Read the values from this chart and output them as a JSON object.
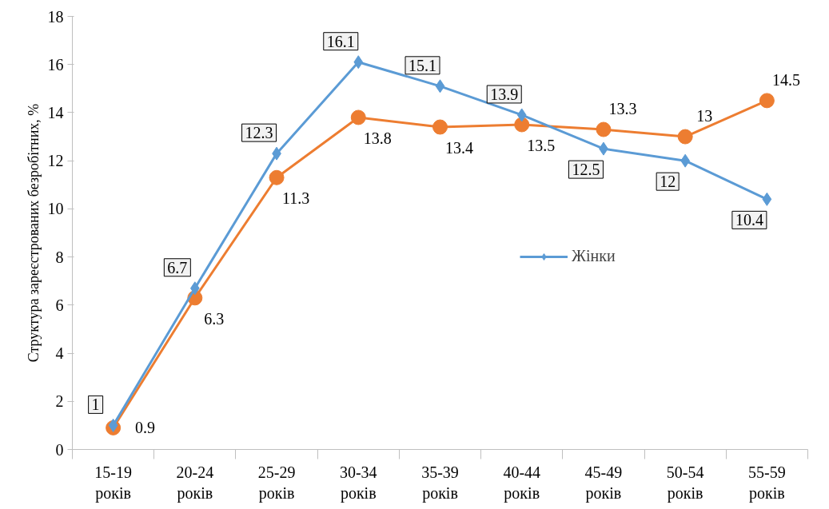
{
  "chart_data": {
    "type": "line",
    "ylabel": "Структура зареєстрованих безробітних, %",
    "categories": [
      "15-19 років",
      "20-24 років",
      "25-29 років",
      "30-34 років",
      "35-39 років",
      "40-44 років",
      "45-49 років",
      "50-54 років",
      "55-59 років"
    ],
    "series": [
      {
        "name": "Жінки",
        "color": "#5b9bd5",
        "marker": "diamond",
        "values": [
          1,
          6.7,
          12.3,
          16.1,
          15.1,
          13.9,
          12.5,
          12,
          10.4
        ]
      },
      {
        "color": "#ed7d31",
        "marker": "circle",
        "values": [
          0.9,
          6.3,
          11.3,
          13.8,
          13.4,
          13.5,
          13.3,
          13,
          14.5
        ]
      }
    ],
    "ylim": [
      0,
      18
    ],
    "yticks": [
      0,
      2,
      4,
      6,
      8,
      10,
      12,
      14,
      16,
      18
    ],
    "grid": false,
    "legend": "right",
    "data_labels": true
  }
}
